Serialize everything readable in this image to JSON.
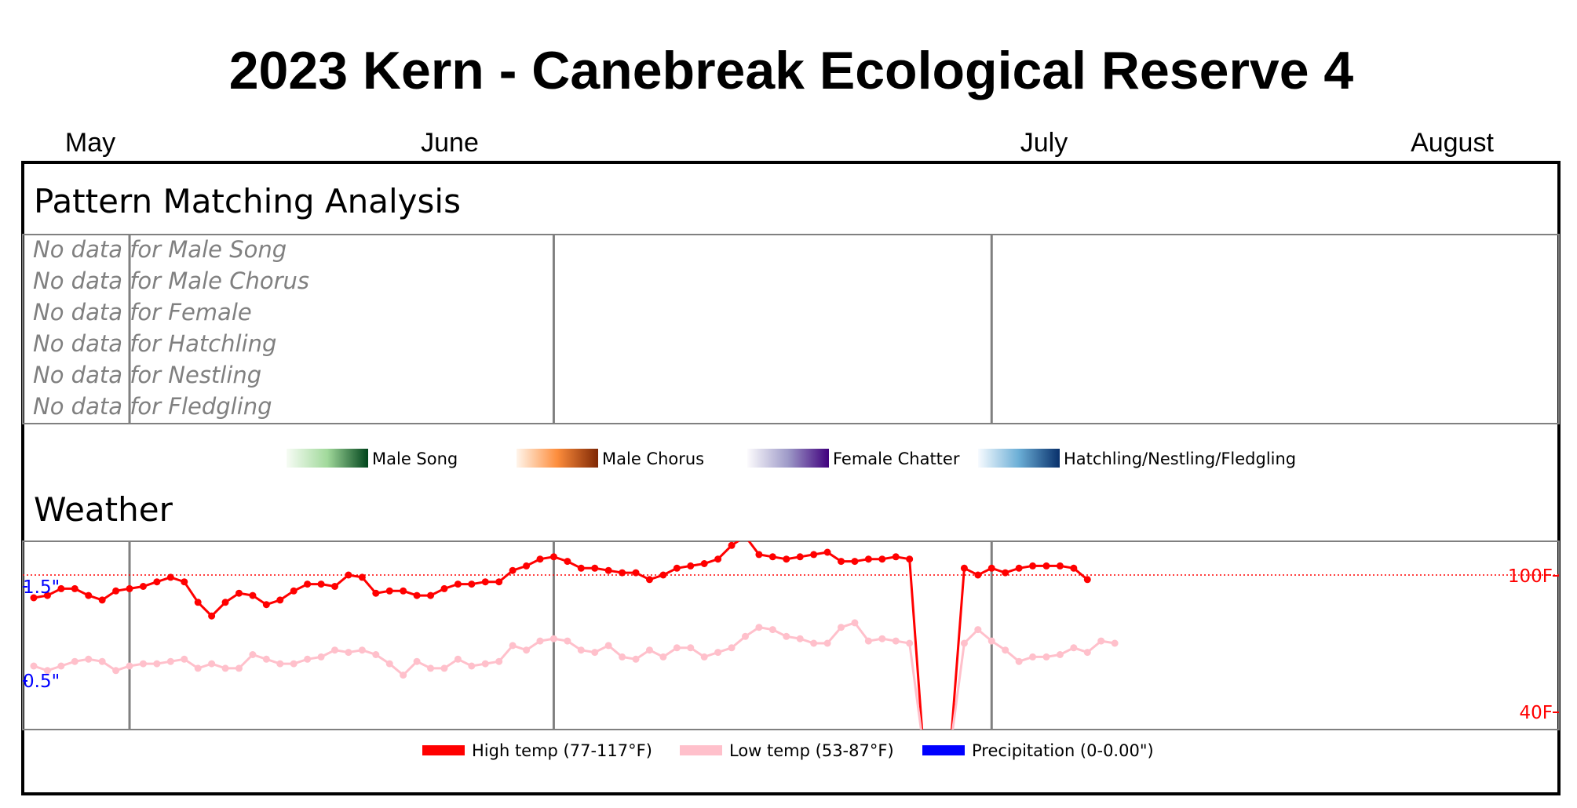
{
  "title": "2023 Kern - Canebreak Ecological Reserve 4",
  "months": [
    "May",
    "June",
    "July",
    "August"
  ],
  "pattern": {
    "heading": "Pattern Matching Analysis",
    "no_data_rows": [
      "No data for Male Song",
      "No data for Male Chorus",
      "No data for Female",
      "No data for Hatchling",
      "No data for Nestling",
      "No data for Fledgling"
    ],
    "legend": [
      {
        "label": "Male Song",
        "colors": [
          "#f7fcf5",
          "#a1d99b",
          "#00441b"
        ]
      },
      {
        "label": "Male Chorus",
        "colors": [
          "#fff5eb",
          "#fd8d3c",
          "#7f2704"
        ]
      },
      {
        "label": "Female Chatter",
        "colors": [
          "#fcfbfd",
          "#9e9ac8",
          "#3f007d"
        ]
      },
      {
        "label": "Hatchling/Nestling/Fledgling",
        "colors": [
          "#f7fbff",
          "#6baed6",
          "#08306b"
        ]
      }
    ]
  },
  "weather": {
    "heading": "Weather",
    "left_ticks": [
      "1.5\"",
      "0.5\""
    ],
    "right_ticks": [
      "100F",
      "40F"
    ],
    "legend": [
      {
        "label": "High temp (77-117°F)",
        "color": "#ff0000"
      },
      {
        "label": "Low temp (53-87°F)",
        "color": "#ffc0cb"
      },
      {
        "label": "Precipitation (0-0.00\")",
        "color": "#0000ff"
      }
    ]
  },
  "chart_data": {
    "type": "line",
    "x_start": "2023-05-01",
    "x_end": "2023-08-20",
    "x_ticks": [
      "2023-05-08",
      "2023-06-08",
      "2023-07-10"
    ],
    "temp_range": [
      40,
      117
    ],
    "reference_line_temp": 100,
    "series": [
      {
        "name": "High temp",
        "color": "#ff0000",
        "start_date": "2023-05-01",
        "values": [
          90,
          91,
          94,
          94,
          91,
          89,
          93,
          94,
          95,
          97,
          99,
          97,
          88,
          82,
          88,
          92,
          91,
          87,
          89,
          93,
          96,
          96,
          95,
          100,
          99,
          92,
          93,
          93,
          91,
          91,
          94,
          96,
          96,
          97,
          97,
          102,
          104,
          107,
          108,
          106,
          103,
          103,
          102,
          101,
          101,
          98,
          100,
          103,
          104,
          105,
          107,
          113,
          117,
          109,
          108,
          107,
          108,
          109,
          110,
          106,
          106,
          107,
          107,
          108,
          107,
          25,
          25,
          25,
          103,
          100,
          103,
          101,
          103,
          104,
          104,
          104,
          103,
          98
        ]
      },
      {
        "name": "Low temp",
        "color": "#ffc0cb",
        "start_date": "2023-05-01",
        "values": [
          60,
          58,
          60,
          62,
          63,
          62,
          58,
          60,
          61,
          61,
          62,
          63,
          59,
          61,
          59,
          59,
          65,
          63,
          61,
          61,
          63,
          64,
          67,
          66,
          67,
          65,
          61,
          56,
          62,
          59,
          59,
          63,
          60,
          61,
          62,
          69,
          67,
          71,
          72,
          71,
          67,
          66,
          69,
          64,
          63,
          67,
          64,
          68,
          68,
          64,
          66,
          68,
          73,
          77,
          76,
          73,
          72,
          70,
          70,
          77,
          79,
          71,
          72,
          71,
          70,
          25,
          25,
          25,
          70,
          76,
          71,
          67,
          62,
          64,
          64,
          65,
          68,
          66,
          71,
          70
        ]
      },
      {
        "name": "Precipitation",
        "color": "#0000ff",
        "values": []
      }
    ]
  }
}
